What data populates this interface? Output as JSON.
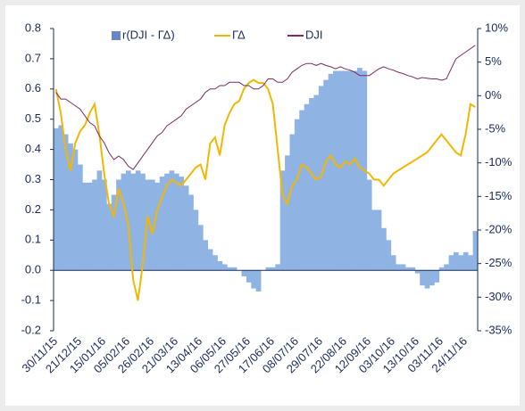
{
  "chart_data": {
    "type": "bar",
    "legend": "top",
    "categories": [
      "30/11/15",
      null,
      null,
      null,
      null,
      "21/12/15",
      null,
      null,
      null,
      null,
      "15/01/16",
      null,
      null,
      null,
      null,
      "05/02/16",
      null,
      null,
      null,
      null,
      "26/02/16",
      null,
      null,
      null,
      null,
      "21/03/16",
      null,
      null,
      null,
      null,
      "13/04/16",
      null,
      null,
      null,
      null,
      "06/05/16",
      null,
      null,
      null,
      null,
      "27/05/16",
      null,
      null,
      null,
      null,
      "17/06/16",
      null,
      null,
      null,
      null,
      "08/07/16",
      null,
      null,
      null,
      null,
      "29/07/16",
      null,
      null,
      null,
      null,
      "22/08/16",
      null,
      null,
      null,
      null,
      "12/09/16",
      null,
      null,
      null,
      null,
      "03/10/16",
      null,
      null,
      null,
      null,
      "13/10/16",
      null,
      null,
      null,
      null,
      "03/11/16",
      null,
      null,
      null,
      null,
      "24/11/16",
      null,
      null
    ],
    "series": [
      {
        "name": "r(DJI - ΓΔ)",
        "type": "bar",
        "color": "#8fb3e3",
        "legend_color": "#6a86c6",
        "axis": "y",
        "values": [
          0.47,
          0.48,
          0.45,
          0.42,
          0.4,
          0.35,
          0.29,
          0.29,
          0.3,
          0.33,
          0.3,
          0.22,
          0.25,
          0.3,
          0.32,
          0.33,
          0.32,
          0.33,
          0.32,
          0.3,
          0.3,
          0.29,
          0.31,
          0.32,
          0.33,
          0.32,
          0.31,
          0.28,
          0.25,
          0.2,
          0.15,
          0.1,
          0.07,
          0.05,
          0.03,
          0.02,
          0.01,
          0.01,
          0.0,
          -0.02,
          -0.04,
          -0.06,
          -0.07,
          0.0,
          0.01,
          0.01,
          0.02,
          0.33,
          0.38,
          0.45,
          0.5,
          0.53,
          0.55,
          0.57,
          0.58,
          0.61,
          0.63,
          0.65,
          0.66,
          0.66,
          0.66,
          0.66,
          0.66,
          0.67,
          0.66,
          0.3,
          0.2,
          0.2,
          0.14,
          0.1,
          0.05,
          0.02,
          0.02,
          0.01,
          0.01,
          -0.01,
          -0.05,
          -0.06,
          -0.05,
          -0.04,
          0.01,
          0.02,
          0.05,
          0.06,
          0.05,
          0.06,
          0.05,
          0.13
        ]
      },
      {
        "name": "ΓΔ",
        "type": "line",
        "color": "#f2b705",
        "axis": "y",
        "values": [
          0.6,
          0.52,
          0.4,
          0.33,
          0.42,
          0.46,
          0.48,
          0.52,
          0.55,
          0.45,
          0.32,
          0.22,
          0.18,
          0.27,
          0.22,
          0.15,
          -0.03,
          -0.1,
          0.02,
          0.18,
          0.12,
          0.2,
          0.24,
          0.28,
          0.3,
          0.29,
          0.28,
          0.3,
          0.32,
          0.34,
          0.35,
          0.3,
          0.42,
          0.44,
          0.38,
          0.48,
          0.52,
          0.55,
          0.56,
          0.6,
          0.62,
          0.63,
          0.62,
          0.62,
          0.6,
          0.55,
          0.4,
          0.25,
          0.22,
          0.28,
          0.3,
          0.35,
          0.34,
          0.32,
          0.3,
          0.31,
          0.36,
          0.38,
          0.35,
          0.34,
          0.36,
          0.35,
          0.37,
          0.34,
          0.33,
          0.32,
          0.3,
          0.3,
          0.28,
          0.3,
          0.32,
          0.33,
          0.34,
          0.35,
          0.36,
          0.37,
          0.38,
          0.39,
          0.41,
          0.43,
          0.45,
          0.43,
          0.41,
          0.39,
          0.38,
          0.45,
          0.55,
          0.54
        ]
      },
      {
        "name": "DJI",
        "type": "line",
        "color": "#7a2a62",
        "axis": "y2",
        "values": [
          0.5,
          -0.5,
          -0.5,
          -1,
          -1.5,
          -2,
          -3,
          -4,
          -4.5,
          -6,
          -7,
          -8.5,
          -9.5,
          -9,
          -9.5,
          -10.5,
          -11,
          -10,
          -9,
          -8,
          -7,
          -6,
          -5.5,
          -4.5,
          -4,
          -3.5,
          -3,
          -2,
          -1.5,
          -1,
          -0.5,
          0.5,
          1,
          1,
          1.5,
          1.5,
          2,
          2,
          2,
          1.5,
          1.5,
          1,
          1,
          1.5,
          2.5,
          2.5,
          2,
          2,
          2.5,
          3.5,
          4,
          4.5,
          4.8,
          4.8,
          4.5,
          4.8,
          4.5,
          4.3,
          4,
          4.3,
          4,
          3.8,
          3.5,
          3,
          3,
          3,
          3.5,
          4,
          4.3,
          4,
          3.8,
          3.5,
          3.3,
          3,
          2.8,
          2.5,
          2.7,
          2.6,
          2.5,
          2.5,
          2.3,
          2.5,
          4,
          5.5,
          6,
          6.5,
          7,
          7.5
        ]
      }
    ],
    "ylim": [
      -0.2,
      0.8
    ],
    "yticks": [
      -0.2,
      -0.1,
      {
        "value": 0,
        "label": "0.0"
      },
      0.1,
      0.2,
      0.3,
      0.4,
      0.5,
      0.6,
      0.7,
      0.8
    ],
    "y2lim": [
      -35,
      10
    ],
    "y2ticks": [
      {
        "value": -35,
        "label": "-35%"
      },
      {
        "value": -30,
        "label": "-30%"
      },
      {
        "value": -25,
        "label": "-25%"
      },
      {
        "value": -20,
        "label": "-20%"
      },
      {
        "value": -15,
        "label": "-15%"
      },
      {
        "value": -10,
        "label": "-10%"
      },
      {
        "value": -5,
        "label": "-5%"
      },
      {
        "value": 0,
        "label": "0%"
      },
      {
        "value": 5,
        "label": "5%"
      },
      {
        "value": 10,
        "label": "10%"
      }
    ]
  }
}
